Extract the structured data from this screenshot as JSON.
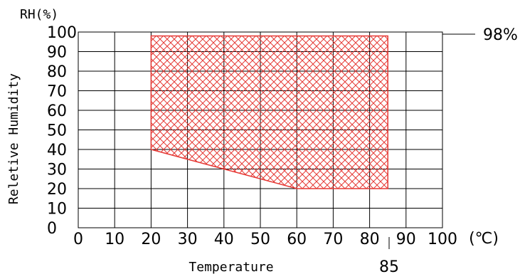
{
  "chart_data": {
    "type": "area",
    "title": "",
    "xlabel": "Temperature",
    "ylabel": "Reletive Humidity",
    "x_unit_label": "(℃)",
    "y_unit_label": "RH(%)",
    "xlim": [
      0,
      100
    ],
    "ylim": [
      0,
      100
    ],
    "x_ticks": [
      "0",
      "10",
      "20",
      "30",
      "40",
      "50",
      "60",
      "70",
      "80",
      "90",
      "100"
    ],
    "y_ticks": [
      "0",
      "10",
      "20",
      "30",
      "40",
      "50",
      "60",
      "70",
      "80",
      "90",
      "100"
    ],
    "grid": true,
    "region_color": "#e53935",
    "region_fill": "crosshatch",
    "series": [
      {
        "x": [
          20,
          20,
          85,
          85,
          60,
          20
        ],
        "y": [
          98,
          40,
          98,
          20,
          20,
          40
        ]
      }
    ],
    "region_polygon": {
      "x": [
        20,
        85,
        85,
        60,
        20
      ],
      "y": [
        98,
        98,
        20,
        20,
        40
      ]
    },
    "annotations": {
      "top_value": "98%",
      "right_temp": "85"
    }
  }
}
